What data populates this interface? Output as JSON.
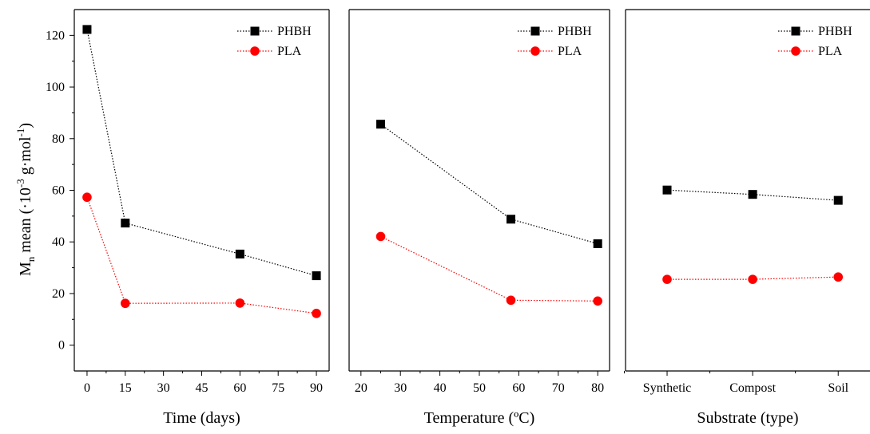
{
  "chart_data": [
    {
      "type": "line",
      "xlabel": "Time (days)",
      "ylabel_main": "M",
      "ylabel_sub": "n",
      "ylabel_rest": " mean (·10",
      "ylabel_exp1": "-3",
      "ylabel_mid": " g·mol",
      "ylabel_exp2": "-1",
      "ylabel_end": ")",
      "x_ticks": [
        0,
        15,
        30,
        45,
        60,
        75,
        90
      ],
      "y_ticks": [
        0,
        20,
        40,
        60,
        80,
        100,
        120
      ],
      "xlim": [
        -5,
        95
      ],
      "ylim": [
        -10,
        130
      ],
      "legend_position": "top-right",
      "series": [
        {
          "name": "PHBH",
          "marker": "square",
          "color": "#000000",
          "x": [
            0,
            15,
            60,
            90
          ],
          "y": [
            122.3,
            47.3,
            35.3,
            26.9
          ]
        },
        {
          "name": "PLA",
          "marker": "circle",
          "color": "#ff0000",
          "x": [
            0,
            15,
            60,
            90
          ],
          "y": [
            57.3,
            16.2,
            16.3,
            12.3
          ]
        }
      ]
    },
    {
      "type": "line",
      "xlabel": "Temperature (ºC)",
      "x_ticks": [
        20,
        30,
        40,
        50,
        60,
        70,
        80
      ],
      "xlim": [
        17,
        83
      ],
      "ylim": [
        -10,
        130
      ],
      "legend_position": "top-right",
      "series": [
        {
          "name": "PHBH",
          "marker": "square",
          "color": "#000000",
          "x": [
            25,
            58,
            80
          ],
          "y": [
            85.6,
            48.8,
            39.3
          ]
        },
        {
          "name": "PLA",
          "marker": "circle",
          "color": "#ff0000",
          "x": [
            25,
            58,
            80
          ],
          "y": [
            42.1,
            17.4,
            17.1
          ]
        }
      ]
    },
    {
      "type": "line",
      "xlabel": "Substrate (type)",
      "categories": [
        "Synthetic",
        "Compost",
        "Soil"
      ],
      "ylim": [
        -10,
        130
      ],
      "legend_position": "top-right",
      "series": [
        {
          "name": "PHBH",
          "marker": "square",
          "color": "#000000",
          "values": [
            60.1,
            58.4,
            56.1
          ]
        },
        {
          "name": "PLA",
          "marker": "circle",
          "color": "#ff0000",
          "values": [
            25.5,
            25.5,
            26.4
          ]
        }
      ]
    }
  ]
}
